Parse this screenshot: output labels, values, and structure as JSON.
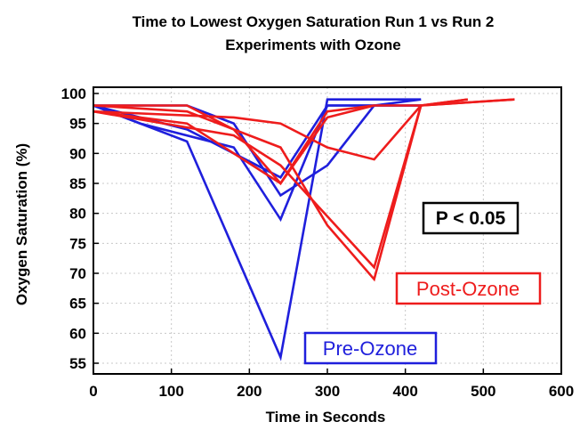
{
  "chart_data": {
    "type": "line",
    "title": "Time to Lowest Oxygen Saturation Run 1 vs Run 2",
    "subtitle": "Experiments with Ozone",
    "xlabel": "Time in Seconds",
    "ylabel": "Oxygen Saturation (%)",
    "xlim": [
      0,
      600
    ],
    "ylim": [
      55,
      100
    ],
    "xticks": [
      0,
      100,
      200,
      300,
      400,
      500,
      600
    ],
    "yticks": [
      55,
      60,
      65,
      70,
      75,
      80,
      85,
      90,
      95,
      100
    ],
    "grid": true,
    "colors": {
      "pre": "#1f1fdc",
      "post": "#ee1c1c"
    },
    "series": [
      {
        "group": "pre",
        "x": [
          0,
          120,
          240,
          300,
          420
        ],
        "y": [
          98,
          92,
          56,
          99,
          99
        ]
      },
      {
        "group": "pre",
        "x": [
          0,
          60,
          180,
          240,
          300,
          420
        ],
        "y": [
          98,
          95,
          91,
          79,
          98,
          98
        ]
      },
      {
        "group": "pre",
        "x": [
          0,
          120,
          180,
          240,
          300,
          360,
          420
        ],
        "y": [
          98,
          98,
          95,
          83,
          88,
          98,
          98
        ]
      },
      {
        "group": "pre",
        "x": [
          0,
          120,
          180,
          240,
          300,
          360,
          420
        ],
        "y": [
          98,
          94,
          90,
          86,
          98,
          98,
          99
        ]
      },
      {
        "group": "post",
        "x": [
          0,
          180,
          240,
          300,
          360,
          420,
          540
        ],
        "y": [
          97,
          96,
          95,
          91,
          89,
          98,
          99
        ]
      },
      {
        "group": "post",
        "x": [
          0,
          120,
          240,
          300,
          360,
          420,
          480
        ],
        "y": [
          98,
          97,
          91,
          78,
          69,
          98,
          99
        ]
      },
      {
        "group": "post",
        "x": [
          0,
          180,
          240,
          360,
          420,
          480
        ],
        "y": [
          97,
          93,
          88,
          71,
          98,
          99
        ]
      },
      {
        "group": "post",
        "x": [
          0,
          120,
          180,
          240,
          300,
          360,
          420,
          540
        ],
        "y": [
          98,
          98,
          94,
          85,
          96,
          98,
          98,
          99
        ]
      },
      {
        "group": "post",
        "x": [
          0,
          120,
          240,
          300,
          360
        ],
        "y": [
          97,
          95,
          85,
          97,
          98
        ]
      }
    ],
    "annotations": {
      "pvalue": "P < 0.05",
      "post_label": "Post-Ozone",
      "pre_label": "Pre-Ozone"
    }
  }
}
